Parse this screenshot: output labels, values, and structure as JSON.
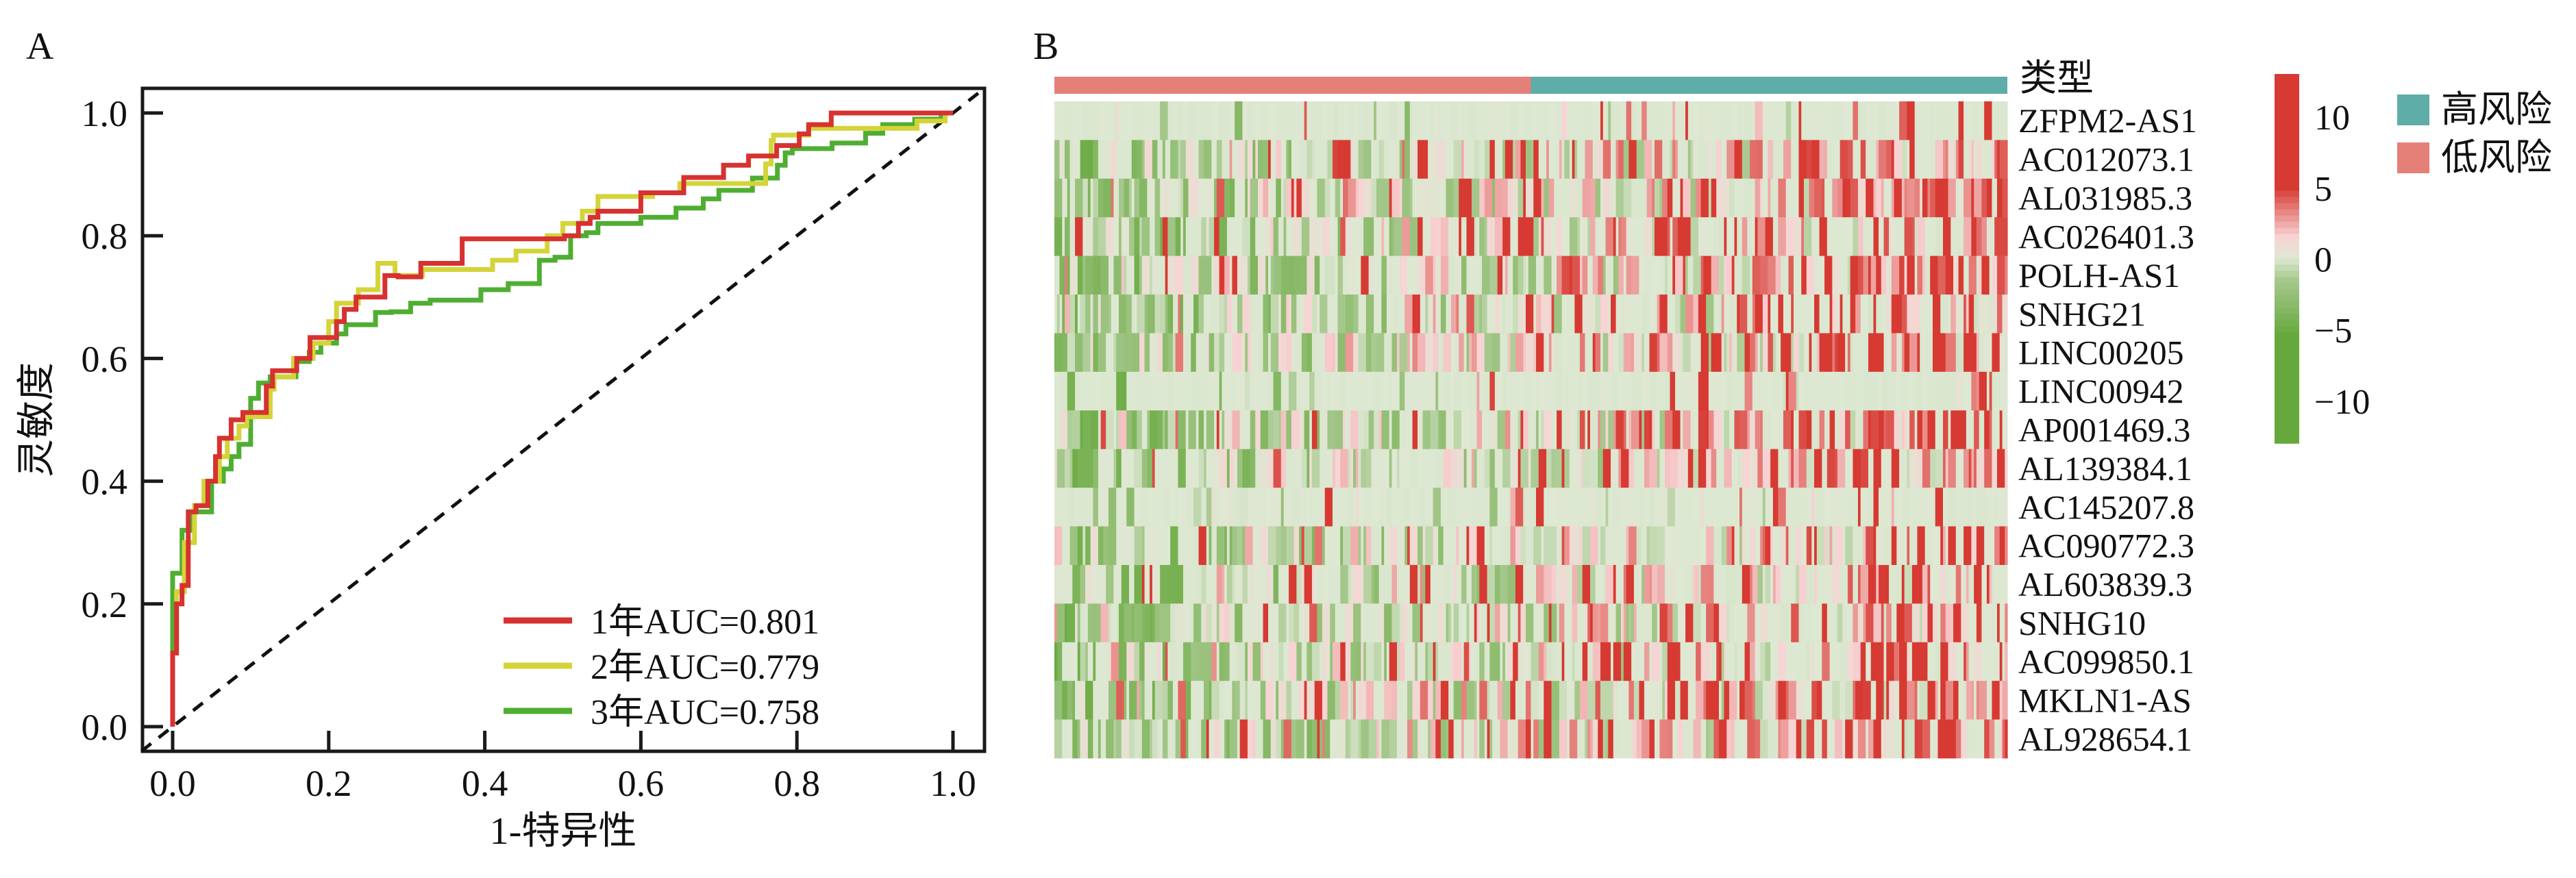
{
  "chart_data": [
    {
      "panel": "A",
      "type": "line",
      "subtype": "roc-step",
      "title": "",
      "xlabel": "1-特异性",
      "ylabel": "灵敏度",
      "xlim": [
        -0.04,
        1.04
      ],
      "ylim": [
        -0.04,
        1.04
      ],
      "xticks": [
        "0.0",
        "0.2",
        "0.4",
        "0.6",
        "0.8",
        "1.0"
      ],
      "yticks": [
        "0.0",
        "0.2",
        "0.4",
        "0.6",
        "0.8",
        "1.0"
      ],
      "grid": false,
      "legend_position": "bottom-right",
      "reference_line": {
        "style": "dashed",
        "color": "#111111",
        "from": [
          0,
          0
        ],
        "to": [
          1,
          1
        ]
      },
      "series": [
        {
          "name": "1年AUC=0.801",
          "color": "#d63230",
          "points": [
            [
              0,
              0
            ],
            [
              0,
              0.12
            ],
            [
              0.005,
              0.12
            ],
            [
              0.005,
              0.2
            ],
            [
              0.012,
              0.2
            ],
            [
              0.012,
              0.23
            ],
            [
              0.02,
              0.23
            ],
            [
              0.02,
              0.35
            ],
            [
              0.03,
              0.35
            ],
            [
              0.03,
              0.36
            ],
            [
              0.045,
              0.36
            ],
            [
              0.045,
              0.4
            ],
            [
              0.055,
              0.4
            ],
            [
              0.055,
              0.44
            ],
            [
              0.06,
              0.44
            ],
            [
              0.06,
              0.47
            ],
            [
              0.075,
              0.47
            ],
            [
              0.075,
              0.5
            ],
            [
              0.09,
              0.5
            ],
            [
              0.09,
              0.512
            ],
            [
              0.12,
              0.512
            ],
            [
              0.12,
              0.555
            ],
            [
              0.128,
              0.555
            ],
            [
              0.128,
              0.58
            ],
            [
              0.159,
              0.58
            ],
            [
              0.159,
              0.6
            ],
            [
              0.176,
              0.6
            ],
            [
              0.176,
              0.634
            ],
            [
              0.21,
              0.634
            ],
            [
              0.21,
              0.66
            ],
            [
              0.22,
              0.66
            ],
            [
              0.22,
              0.68
            ],
            [
              0.235,
              0.68
            ],
            [
              0.235,
              0.7
            ],
            [
              0.272,
              0.7
            ],
            [
              0.272,
              0.735
            ],
            [
              0.289,
              0.735
            ],
            [
              0.289,
              0.733
            ],
            [
              0.318,
              0.733
            ],
            [
              0.318,
              0.755
            ],
            [
              0.371,
              0.755
            ],
            [
              0.371,
              0.795
            ],
            [
              0.502,
              0.795
            ],
            [
              0.502,
              0.8
            ],
            [
              0.52,
              0.8
            ],
            [
              0.52,
              0.82
            ],
            [
              0.535,
              0.82
            ],
            [
              0.535,
              0.83
            ],
            [
              0.545,
              0.83
            ],
            [
              0.545,
              0.84
            ],
            [
              0.6,
              0.84
            ],
            [
              0.6,
              0.87
            ],
            [
              0.655,
              0.87
            ],
            [
              0.655,
              0.895
            ],
            [
              0.706,
              0.895
            ],
            [
              0.706,
              0.915
            ],
            [
              0.738,
              0.915
            ],
            [
              0.738,
              0.93
            ],
            [
              0.774,
              0.93
            ],
            [
              0.774,
              0.947
            ],
            [
              0.803,
              0.947
            ],
            [
              0.803,
              0.966
            ],
            [
              0.815,
              0.966
            ],
            [
              0.815,
              0.981
            ],
            [
              0.844,
              0.981
            ],
            [
              0.844,
              1.0
            ],
            [
              1.0,
              1.0
            ]
          ]
        },
        {
          "name": "2年AUC=0.779",
          "color": "#d4d43a",
          "points": [
            [
              0.005,
              0.12
            ],
            [
              0.005,
              0.22
            ],
            [
              0.015,
              0.22
            ],
            [
              0.015,
              0.3
            ],
            [
              0.028,
              0.3
            ],
            [
              0.028,
              0.36
            ],
            [
              0.04,
              0.36
            ],
            [
              0.04,
              0.4
            ],
            [
              0.06,
              0.4
            ],
            [
              0.06,
              0.44
            ],
            [
              0.07,
              0.44
            ],
            [
              0.07,
              0.47
            ],
            [
              0.085,
              0.47
            ],
            [
              0.085,
              0.49
            ],
            [
              0.095,
              0.49
            ],
            [
              0.095,
              0.505
            ],
            [
              0.125,
              0.505
            ],
            [
              0.125,
              0.55
            ],
            [
              0.13,
              0.55
            ],
            [
              0.13,
              0.57
            ],
            [
              0.155,
              0.57
            ],
            [
              0.155,
              0.6
            ],
            [
              0.18,
              0.6
            ],
            [
              0.18,
              0.625
            ],
            [
              0.2,
              0.625
            ],
            [
              0.2,
              0.66
            ],
            [
              0.21,
              0.66
            ],
            [
              0.21,
              0.69
            ],
            [
              0.238,
              0.69
            ],
            [
              0.238,
              0.712
            ],
            [
              0.263,
              0.712
            ],
            [
              0.263,
              0.755
            ],
            [
              0.285,
              0.755
            ],
            [
              0.285,
              0.735
            ],
            [
              0.32,
              0.735
            ],
            [
              0.32,
              0.745
            ],
            [
              0.41,
              0.745
            ],
            [
              0.41,
              0.76
            ],
            [
              0.44,
              0.76
            ],
            [
              0.44,
              0.775
            ],
            [
              0.48,
              0.775
            ],
            [
              0.48,
              0.8
            ],
            [
              0.5,
              0.8
            ],
            [
              0.5,
              0.82
            ],
            [
              0.525,
              0.82
            ],
            [
              0.525,
              0.84
            ],
            [
              0.545,
              0.84
            ],
            [
              0.545,
              0.864
            ],
            [
              0.615,
              0.864
            ],
            [
              0.615,
              0.87
            ],
            [
              0.65,
              0.87
            ],
            [
              0.65,
              0.885
            ],
            [
              0.695,
              0.885
            ],
            [
              0.695,
              0.885
            ],
            [
              0.76,
              0.885
            ],
            [
              0.76,
              0.917
            ],
            [
              0.767,
              0.917
            ],
            [
              0.767,
              0.955
            ],
            [
              0.77,
              0.955
            ],
            [
              0.77,
              0.964
            ],
            [
              0.815,
              0.964
            ],
            [
              0.815,
              0.975
            ],
            [
              0.954,
              0.975
            ],
            [
              0.954,
              0.987
            ],
            [
              0.99,
              0.987
            ],
            [
              0.99,
              1.0
            ],
            [
              1.0,
              1.0
            ]
          ]
        },
        {
          "name": "3年AUC=0.758",
          "color": "#4fae32",
          "points": [
            [
              0,
              0
            ],
            [
              0,
              0.25
            ],
            [
              0.012,
              0.25
            ],
            [
              0.012,
              0.32
            ],
            [
              0.025,
              0.32
            ],
            [
              0.025,
              0.35
            ],
            [
              0.05,
              0.35
            ],
            [
              0.05,
              0.4
            ],
            [
              0.065,
              0.4
            ],
            [
              0.065,
              0.42
            ],
            [
              0.075,
              0.42
            ],
            [
              0.075,
              0.44
            ],
            [
              0.085,
              0.44
            ],
            [
              0.085,
              0.46
            ],
            [
              0.1,
              0.46
            ],
            [
              0.1,
              0.535
            ],
            [
              0.11,
              0.535
            ],
            [
              0.11,
              0.56
            ],
            [
              0.125,
              0.56
            ],
            [
              0.125,
              0.57
            ],
            [
              0.158,
              0.57
            ],
            [
              0.158,
              0.595
            ],
            [
              0.175,
              0.595
            ],
            [
              0.175,
              0.61
            ],
            [
              0.19,
              0.61
            ],
            [
              0.19,
              0.625
            ],
            [
              0.21,
              0.625
            ],
            [
              0.21,
              0.64
            ],
            [
              0.222,
              0.64
            ],
            [
              0.222,
              0.655
            ],
            [
              0.26,
              0.655
            ],
            [
              0.26,
              0.675
            ],
            [
              0.28,
              0.675
            ],
            [
              0.28,
              0.676
            ],
            [
              0.305,
              0.676
            ],
            [
              0.305,
              0.69
            ],
            [
              0.33,
              0.69
            ],
            [
              0.33,
              0.695
            ],
            [
              0.395,
              0.695
            ],
            [
              0.395,
              0.712
            ],
            [
              0.43,
              0.712
            ],
            [
              0.43,
              0.722
            ],
            [
              0.47,
              0.722
            ],
            [
              0.47,
              0.76
            ],
            [
              0.49,
              0.76
            ],
            [
              0.49,
              0.765
            ],
            [
              0.51,
              0.765
            ],
            [
              0.51,
              0.8
            ],
            [
              0.53,
              0.8
            ],
            [
              0.53,
              0.805
            ],
            [
              0.545,
              0.805
            ],
            [
              0.545,
              0.82
            ],
            [
              0.6,
              0.82
            ],
            [
              0.6,
              0.83
            ],
            [
              0.645,
              0.83
            ],
            [
              0.645,
              0.845
            ],
            [
              0.68,
              0.845
            ],
            [
              0.68,
              0.86
            ],
            [
              0.7,
              0.86
            ],
            [
              0.7,
              0.874
            ],
            [
              0.743,
              0.874
            ],
            [
              0.743,
              0.894
            ],
            [
              0.775,
              0.894
            ],
            [
              0.775,
              0.915
            ],
            [
              0.785,
              0.915
            ],
            [
              0.785,
              0.935
            ],
            [
              0.794,
              0.935
            ],
            [
              0.794,
              0.942
            ],
            [
              0.845,
              0.942
            ],
            [
              0.845,
              0.951
            ],
            [
              0.888,
              0.951
            ],
            [
              0.888,
              0.967
            ],
            [
              0.91,
              0.967
            ],
            [
              0.91,
              0.981
            ],
            [
              0.951,
              0.981
            ],
            [
              0.951,
              0.99
            ],
            [
              0.985,
              0.99
            ],
            [
              0.985,
              1.0
            ],
            [
              1.0,
              1.0
            ]
          ]
        }
      ]
    },
    {
      "panel": "B",
      "type": "heatmap",
      "title": "",
      "annotation": {
        "label": "类型",
        "groups": [
          {
            "name": "低风险",
            "color": "#e58079",
            "fraction": 0.5
          },
          {
            "name": "高风险",
            "color": "#5fada8",
            "fraction": 0.5
          }
        ]
      },
      "rows": [
        "ZFPM2-AS1",
        "AC012073.1",
        "AL031985.3",
        "AC026401.3",
        "POLH-AS1",
        "SNHG21",
        "LINC00205",
        "LINC00942",
        "AP001469.3",
        "AL139384.1",
        "AC145207.8",
        "AC090772.3",
        "AL603839.3",
        "SNHG10",
        "AC099850.1",
        "MKLN1-AS",
        "AL928654.1"
      ],
      "columns_count_approx": 370,
      "values_note": "per-sample expression values not legible; low-risk samples mostly negative (green), high-risk samples increasingly positive (red) toward the right",
      "row_sparsity": [
        0.85,
        0.35,
        0.15,
        0.3,
        0.2,
        0.35,
        0.3,
        0.9,
        0.25,
        0.3,
        0.85,
        0.35,
        0.3,
        0.35,
        0.3,
        0.2,
        0.25
      ],
      "colorbar": {
        "range": [
          -13,
          13
        ],
        "ticks": [
          "10",
          "5",
          "0",
          "−5",
          "−10"
        ],
        "tick_values": [
          10,
          5,
          0,
          -5,
          -10
        ],
        "colors": {
          "high": "#d63a32",
          "mid_high": "#f8d3d4",
          "mid": "#dde8d2",
          "mid_low": "#a6c88d",
          "low": "#66a83c"
        }
      },
      "legend": [
        {
          "label": "高风险",
          "color": "#5fada8"
        },
        {
          "label": "低风险",
          "color": "#e58079"
        }
      ]
    }
  ],
  "panels": {
    "a_letter": "A",
    "b_letter": "B"
  }
}
